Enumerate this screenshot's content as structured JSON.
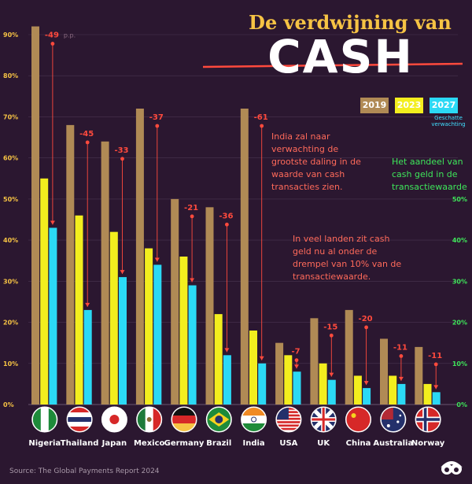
{
  "title": {
    "line1": "De verdwijning van",
    "line2": "CASH"
  },
  "legend": {
    "items": [
      {
        "label": "2019",
        "color": "#b08a55"
      },
      {
        "label": "2023",
        "color": "#f3ee1e"
      },
      {
        "label": "2027",
        "color": "#2bd9f5"
      }
    ],
    "note": "Geschatte verwachting"
  },
  "annotations": {
    "india": "India zal naar verwachting de grootste daling in de waarde van cash transacties zien.",
    "threshold": "In veel landen zit cash geld nu al onder de drempel van 10% van de transactiewaarde.",
    "right_axis": "Het aandeel van cash geld in de transactiewaarde"
  },
  "source": "Source: The Global Payments Report 2024",
  "colors": {
    "background": "#2b1730",
    "bar2019": "#b08a55",
    "bar2023": "#f3ee1e",
    "bar2027": "#2bd9f5",
    "arrow": "#ff4a3d",
    "left_axis": "#f6c344",
    "right_axis": "#3ee65a",
    "brand_icon": "#ffffff"
  },
  "chart_data": {
    "type": "bar",
    "categories": [
      "Nigeria",
      "Thailand",
      "Japan",
      "Mexico",
      "Germany",
      "Brazil",
      "India",
      "USA",
      "UK",
      "China",
      "Australia",
      "Norway"
    ],
    "series": [
      {
        "name": "2019",
        "values": [
          92,
          68,
          64,
          72,
          50,
          48,
          72,
          15,
          21,
          23,
          16,
          14
        ]
      },
      {
        "name": "2023",
        "values": [
          55,
          46,
          42,
          38,
          36,
          22,
          18,
          12,
          10,
          7,
          7,
          5
        ]
      },
      {
        "name": "2027",
        "values": [
          43,
          23,
          31,
          34,
          29,
          12,
          10,
          8,
          6,
          4,
          5,
          3
        ]
      }
    ],
    "changes": [
      "-49",
      "-45",
      "-33",
      "-37",
      "-21",
      "-36",
      "-61",
      "-7",
      "-15",
      "-20",
      "-11",
      "-11"
    ],
    "change_unit": "p.p.",
    "y_ticks": [
      "0%",
      "10%",
      "20%",
      "30%",
      "40%",
      "50%",
      "60%",
      "70%",
      "80%",
      "90%"
    ],
    "y_ticks_right": [
      "0%",
      "10%",
      "20%",
      "30%",
      "40%",
      "50%"
    ],
    "ylim": [
      0,
      95
    ],
    "grid": true,
    "legend_position": "top-right"
  }
}
